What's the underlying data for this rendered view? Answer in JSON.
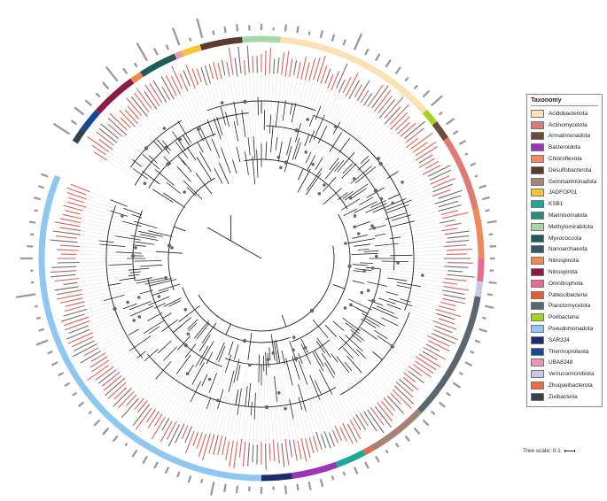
{
  "legend": {
    "title": "Taxonomy",
    "items": [
      {
        "label": "Acidobacteriota",
        "color": "#fde1b4"
      },
      {
        "label": "Actinomycetota",
        "color": "#e07a73"
      },
      {
        "label": "Armatimonadota",
        "color": "#6e4a3a"
      },
      {
        "label": "Bacteroidota",
        "color": "#9b36b5"
      },
      {
        "label": "Chloroflexota",
        "color": "#f08a5d"
      },
      {
        "label": "Desulfobacterota",
        "color": "#5a3b2e"
      },
      {
        "label": "Gemmatimonadota",
        "color": "#a88272"
      },
      {
        "label": "JADFOP01",
        "color": "#f7c531"
      },
      {
        "label": "KSB1",
        "color": "#1ea89b"
      },
      {
        "label": "Marinisomatota",
        "color": "#2a8a7c"
      },
      {
        "label": "Methylomirabilota",
        "color": "#a6d8ac"
      },
      {
        "label": "Myxococcota",
        "color": "#1d5c5a"
      },
      {
        "label": "Nanoarchaeota",
        "color": "#3c5663"
      },
      {
        "label": "Nitrospinota",
        "color": "#ef8a4f"
      },
      {
        "label": "Nitrospirota",
        "color": "#8c1a45"
      },
      {
        "label": "Omnitrophota",
        "color": "#ea6b8d"
      },
      {
        "label": "Patescibacteria",
        "color": "#ea5a2a"
      },
      {
        "label": "Planctomycetota",
        "color": "#5b6770"
      },
      {
        "label": "Poribacteria",
        "color": "#a8d21c"
      },
      {
        "label": "Pseudomonadota",
        "color": "#8ec7ef"
      },
      {
        "label": "SAR324",
        "color": "#1d2a6d"
      },
      {
        "label": "Thermoproteota",
        "color": "#14489a"
      },
      {
        "label": "UBA8248",
        "color": "#ef94b4"
      },
      {
        "label": "Verrucomicrobiota",
        "color": "#c7c9e8"
      },
      {
        "label": "Zhuqueibacterota",
        "color": "#ef6a3c"
      },
      {
        "label": "Zixibacteria",
        "color": "#33434c"
      }
    ]
  },
  "tree_scale": {
    "label": "Tree scale: 0.1"
  },
  "ring_segments": [
    {
      "taxon": "Methylomirabilota",
      "start": 355,
      "end": 5
    },
    {
      "taxon": "Acidobacteriota",
      "start": 5,
      "end": 48
    },
    {
      "taxon": "Poribacteria",
      "start": 48,
      "end": 52
    },
    {
      "taxon": "Armatimonadota",
      "start": 52,
      "end": 57
    },
    {
      "taxon": "Actinomycetota",
      "start": 57,
      "end": 77
    },
    {
      "taxon": "Chloroflexota",
      "start": 77,
      "end": 90
    },
    {
      "taxon": "Omnitrophota",
      "start": 90,
      "end": 96
    },
    {
      "taxon": "Verrucomicrobiota",
      "start": 96,
      "end": 100
    },
    {
      "taxon": "Planctomycetota",
      "start": 100,
      "end": 134
    },
    {
      "taxon": "Gemmatimonadota",
      "start": 134,
      "end": 150
    },
    {
      "taxon": "Zhuqueibacterota",
      "start": 150,
      "end": 152
    },
    {
      "taxon": "KSB1",
      "start": 152,
      "end": 160
    },
    {
      "taxon": "Bacteroidota",
      "start": 160,
      "end": 172
    },
    {
      "taxon": "SAR324",
      "start": 172,
      "end": 180
    },
    {
      "taxon": "Pseudomonadota",
      "start": 180,
      "end": 292
    },
    {
      "taxon": "Zixibacteria",
      "start": 302,
      "end": 306
    },
    {
      "taxon": "Thermoproteota",
      "start": 306,
      "end": 312
    },
    {
      "taxon": "Nitrospirota",
      "start": 312,
      "end": 324
    },
    {
      "taxon": "Nitrospinota",
      "start": 324,
      "end": 327
    },
    {
      "taxon": "Myxococcota",
      "start": 327,
      "end": 337
    },
    {
      "taxon": "UBA8248",
      "start": 337,
      "end": 339
    },
    {
      "taxon": "JADFOP01",
      "start": 339,
      "end": 344
    },
    {
      "taxon": "Desulfobacterota",
      "start": 344,
      "end": 355
    }
  ]
}
